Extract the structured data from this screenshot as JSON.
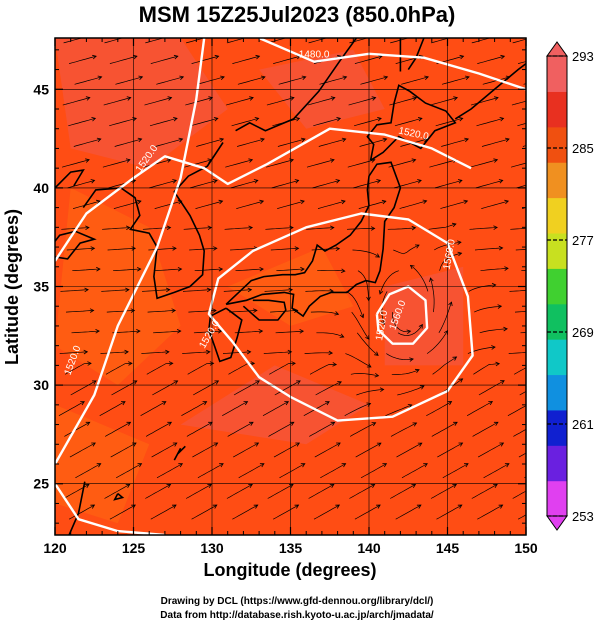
{
  "title": "MSM 15Z25Jul2023 (850.0hPa)",
  "xlabel": "Longitude (degrees)",
  "ylabel": "Latitude  (degrees)",
  "x_ticks": [
    "120",
    "125",
    "130",
    "135",
    "140",
    "145",
    "150"
  ],
  "y_ticks": [
    "25",
    "30",
    "35",
    "40",
    "45"
  ],
  "colorbar": {
    "min": 253,
    "max": 293,
    "tick_labels": [
      "293",
      "285",
      "277",
      "269",
      "261",
      "253"
    ],
    "colors": [
      "#e040f0",
      "#6a20e0",
      "#1020d0",
      "#1090e0",
      "#10c8c8",
      "#10c060",
      "#40d030",
      "#c8e020",
      "#f0d020",
      "#f09020",
      "#f05010",
      "#e83020",
      "#f06060"
    ]
  },
  "contour_labels": [
    "1480.0",
    "1520.0",
    "1520.0",
    "1520.0",
    "1560.0",
    "1560.0",
    "1520.0",
    "1520.0"
  ],
  "credits": [
    "Drawing by DCL (https://www.gfd-dennou.org/library/dcl/)",
    "Data from http://database.rish.kyoto-u.ac.jp/arch/jmadata/"
  ],
  "map_colors": {
    "field_base": "#ff4d14",
    "field_warm": "#f05a4a",
    "field_orange": "#ff6a10",
    "contour": "#ffffff",
    "coast": "#000000"
  }
}
